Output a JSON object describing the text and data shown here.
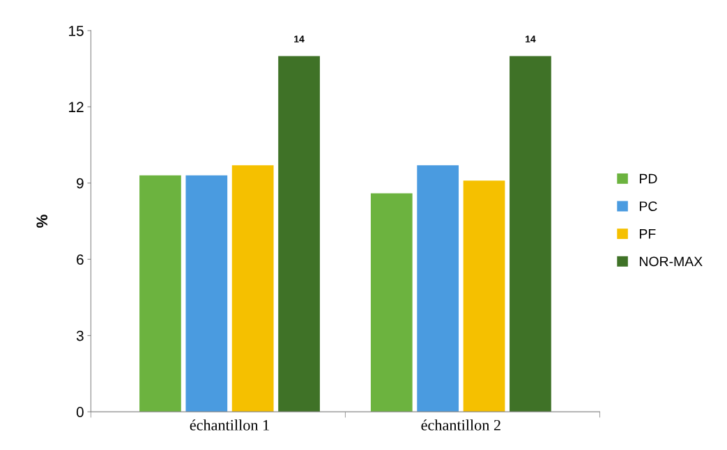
{
  "chart_data": {
    "type": "bar",
    "ylabel": "%",
    "categories": [
      "échantillon 1",
      "échantillon 2"
    ],
    "series": [
      {
        "name": "PD",
        "color": "#6cb33f",
        "values": [
          9.3,
          8.6
        ]
      },
      {
        "name": "PC",
        "color": "#4a9be0",
        "values": [
          9.3,
          9.7
        ]
      },
      {
        "name": "PF",
        "color": "#f5c000",
        "values": [
          9.7,
          9.1
        ]
      },
      {
        "name": "NOR-MAX",
        "color": "#3f7227",
        "values": [
          14,
          14
        ],
        "value_labels": [
          "14",
          "14"
        ]
      }
    ],
    "ylim": [
      0,
      15
    ],
    "yticks": [
      0,
      3,
      6,
      9,
      12,
      15
    ],
    "grid": false,
    "legend": "right"
  }
}
